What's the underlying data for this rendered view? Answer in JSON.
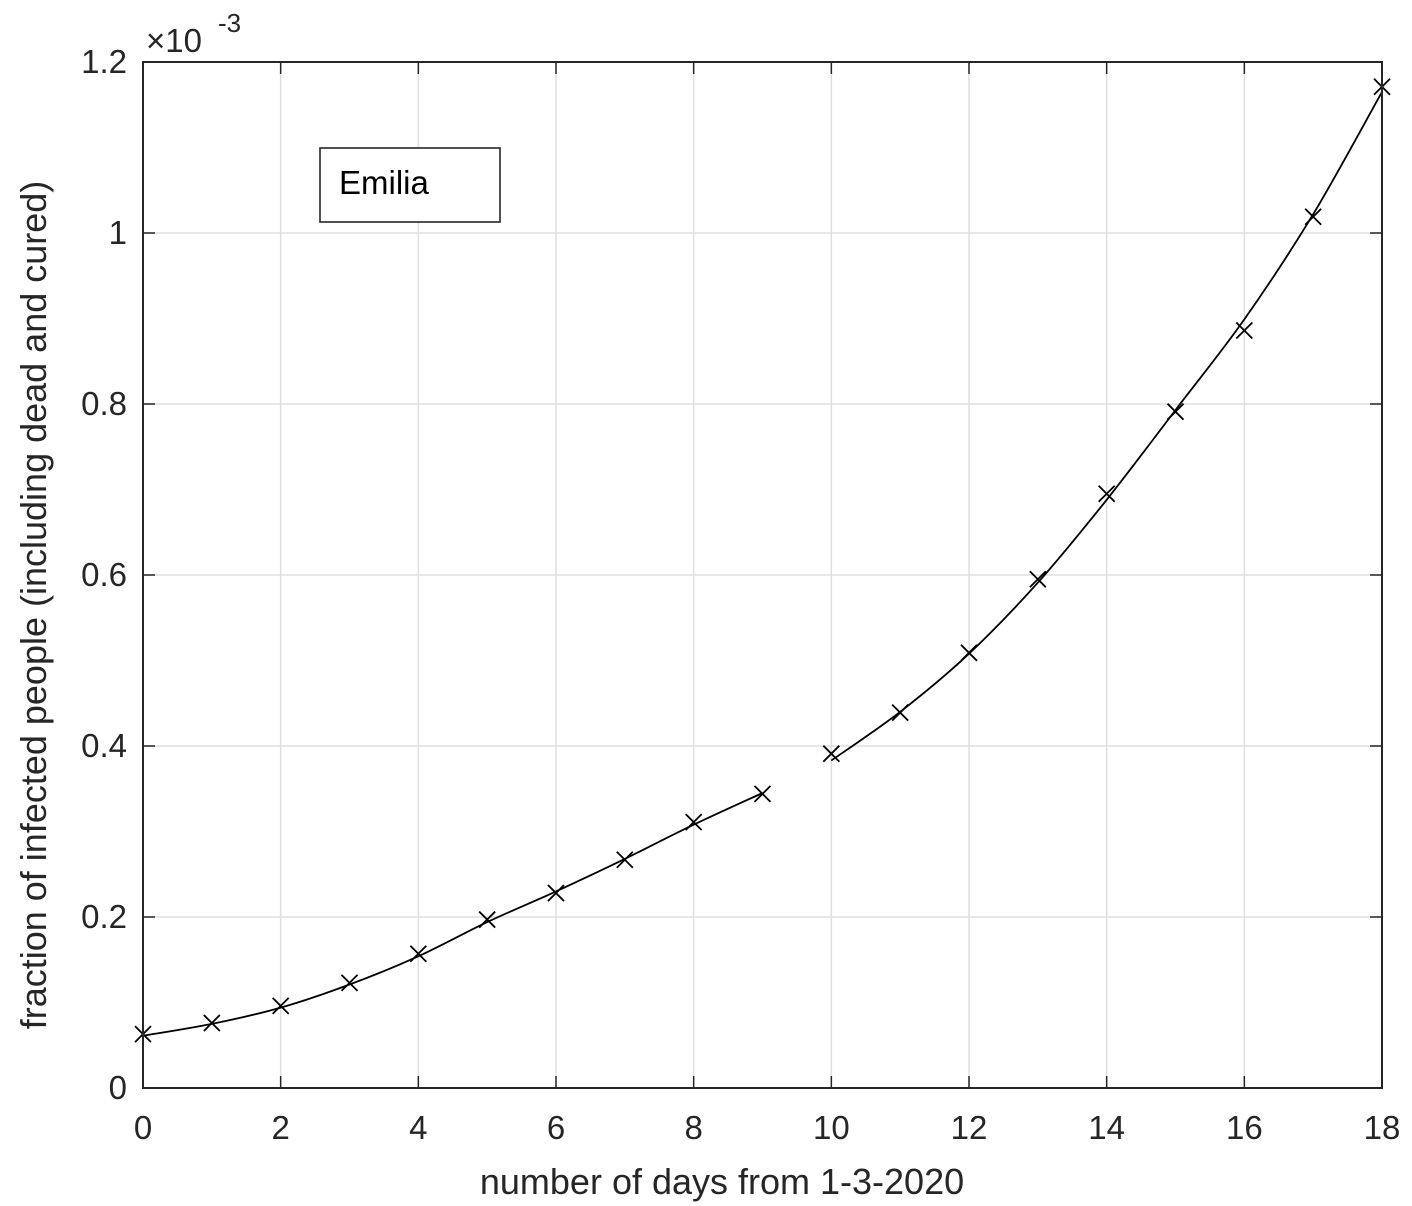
{
  "chart_data": {
    "type": "line",
    "xlabel": "number of days from 1-3-2020",
    "ylabel": "fraction of infected people (including dead and cured)",
    "xlim": [
      0,
      18
    ],
    "ylim": [
      0,
      1.2
    ],
    "y_scale_exponent": {
      "multiplier": "×10",
      "exponent": "-3"
    },
    "x_ticks": [
      0,
      2,
      4,
      6,
      8,
      10,
      12,
      14,
      16,
      18
    ],
    "x_tick_labels": [
      "0",
      "2",
      "4",
      "6",
      "8",
      "10",
      "12",
      "14",
      "16",
      "18"
    ],
    "y_ticks": [
      0,
      0.2,
      0.4,
      0.6,
      0.8,
      1.0,
      1.2
    ],
    "y_tick_labels": [
      "0",
      "0.2",
      "0.4",
      "0.6",
      "0.8",
      "1",
      "1.2"
    ],
    "grid": true,
    "legend": {
      "placement": "top-left",
      "entries": [
        "Emilia"
      ]
    },
    "series": [
      {
        "marker": "x",
        "x": [
          0,
          1,
          2,
          3,
          4,
          5,
          6,
          7,
          8,
          9,
          10,
          11,
          12,
          13,
          14,
          15,
          16,
          17,
          18
        ],
        "values": [
          0.063,
          0.076,
          0.096,
          0.123,
          0.157,
          0.197,
          0.228,
          0.267,
          0.311,
          0.344,
          0.391,
          0.439,
          0.509,
          0.595,
          0.695,
          0.791,
          0.886,
          1.019,
          1.171
        ]
      },
      {
        "marker": "none",
        "x": [
          0,
          1,
          2,
          3,
          4,
          5,
          6,
          7,
          8,
          9
        ],
        "values": [
          0.061,
          0.075,
          0.094,
          0.121,
          0.154,
          0.194,
          0.23,
          0.268,
          0.308,
          0.345
        ]
      },
      {
        "marker": "none",
        "x": [
          10,
          11,
          12,
          13,
          14,
          15,
          16,
          17,
          18
        ],
        "values": [
          0.383,
          0.44,
          0.508,
          0.591,
          0.688,
          0.793,
          0.899,
          1.022,
          1.165
        ]
      }
    ],
    "colors": {
      "line": "#000000",
      "grid": "#dfdfdf",
      "axes": "#262626"
    }
  }
}
